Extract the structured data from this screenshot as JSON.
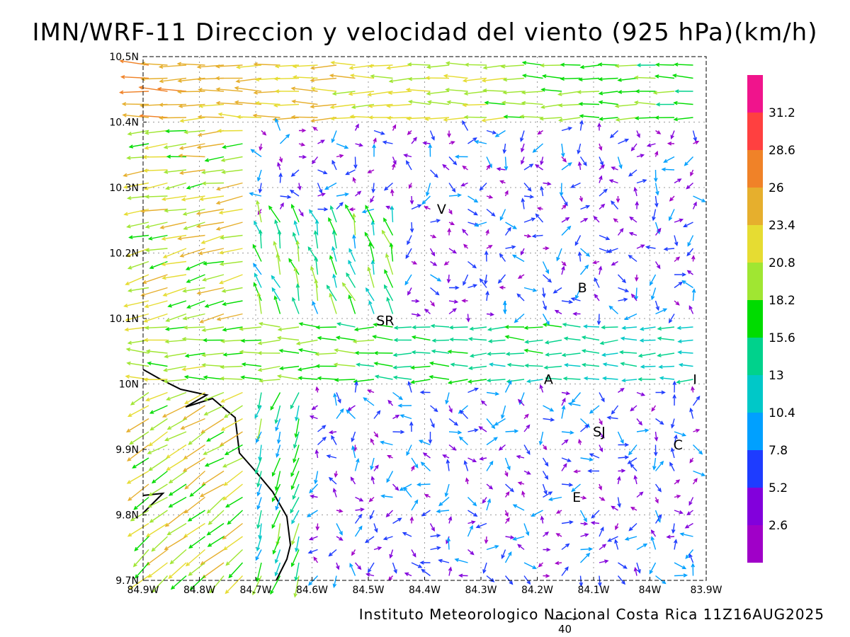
{
  "title": "IMN/WRF-11 Direccion y velocidad del viento (925 hPa)(km/h)",
  "credit": "Instituto Meteorologico Nacional Costa Rica 11Z16AUG2025",
  "reference_vector_label": "40",
  "chart_data": {
    "type": "vector-field",
    "x_ticks": [
      "84.9W",
      "84.8W",
      "84.7W",
      "84.6W",
      "84.5W",
      "84.4W",
      "84.3W",
      "84.2W",
      "84.1W",
      "84W",
      "83.9W"
    ],
    "y_ticks": [
      "9.7N",
      "9.8N",
      "9.9N",
      "10N",
      "10.1N",
      "10.2N",
      "10.3N",
      "10.4N",
      "10.5N"
    ],
    "xlim": [
      -84.9,
      -83.9
    ],
    "ylim": [
      9.7,
      10.5
    ],
    "grid": true,
    "colorbar": {
      "labels": [
        "31.2",
        "28.6",
        "26",
        "23.4",
        "20.8",
        "18.2",
        "15.6",
        "13",
        "10.4",
        "7.8",
        "5.2",
        "2.6"
      ],
      "colors": [
        "#f0148c",
        "#ff4040",
        "#f08228",
        "#e6af2d",
        "#e6dc32",
        "#a0e632",
        "#00dc00",
        "#00d28c",
        "#00c8c8",
        "#00a0ff",
        "#1e3cff",
        "#8200dc",
        "#a000c8"
      ]
    },
    "station_labels": [
      {
        "text": "V",
        "lon": -84.37,
        "lat": 10.26
      },
      {
        "text": "B",
        "lon": -84.12,
        "lat": 10.14
      },
      {
        "text": "SR",
        "lon": -84.47,
        "lat": 10.09
      },
      {
        "text": "A",
        "lon": -84.18,
        "lat": 10.0
      },
      {
        "text": "SJ",
        "lon": -84.09,
        "lat": 9.92
      },
      {
        "text": "C",
        "lon": -83.95,
        "lat": 9.9
      },
      {
        "text": "E",
        "lon": -84.13,
        "lat": 9.82
      },
      {
        "text": "I",
        "lon": -83.92,
        "lat": 10.0
      }
    ]
  }
}
